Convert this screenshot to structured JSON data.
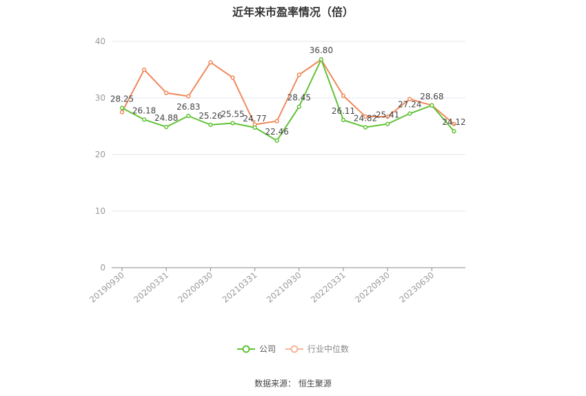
{
  "chart_data": {
    "type": "line",
    "title": "近年来市盈率情况（倍）",
    "ylim": [
      0,
      40
    ],
    "y_ticks": [
      0,
      10,
      20,
      30,
      40
    ],
    "x_tick_labels": [
      "20190930",
      "20200331",
      "20200930",
      "20210331",
      "20210930",
      "20220331",
      "20220930",
      "20230630"
    ],
    "grid": true,
    "legend_position": "bottom",
    "series": [
      {
        "name": "公司",
        "color": "#5fc234",
        "values": [
          28.25,
          26.18,
          24.88,
          26.83,
          25.26,
          25.55,
          24.77,
          22.46,
          28.45,
          36.8,
          26.11,
          24.82,
          25.41,
          27.24,
          28.68,
          24.12
        ],
        "labels": [
          "28.25",
          "26.18",
          "24.88",
          "26.83",
          "25.26",
          "25.55",
          "24.77",
          "22.46",
          "28.45",
          "36.80",
          "26.11",
          "24.82",
          "25.41",
          "27.24",
          "28.68",
          "24.12"
        ]
      },
      {
        "name": "行业中位数",
        "color": "#f0885a",
        "values": [
          27.5,
          35.0,
          30.9,
          30.3,
          36.3,
          33.6,
          25.3,
          25.9,
          34.1,
          36.8,
          30.4,
          26.7,
          26.7,
          29.8,
          28.7,
          25.4
        ]
      }
    ]
  },
  "source": "数据来源：  恒生聚源"
}
